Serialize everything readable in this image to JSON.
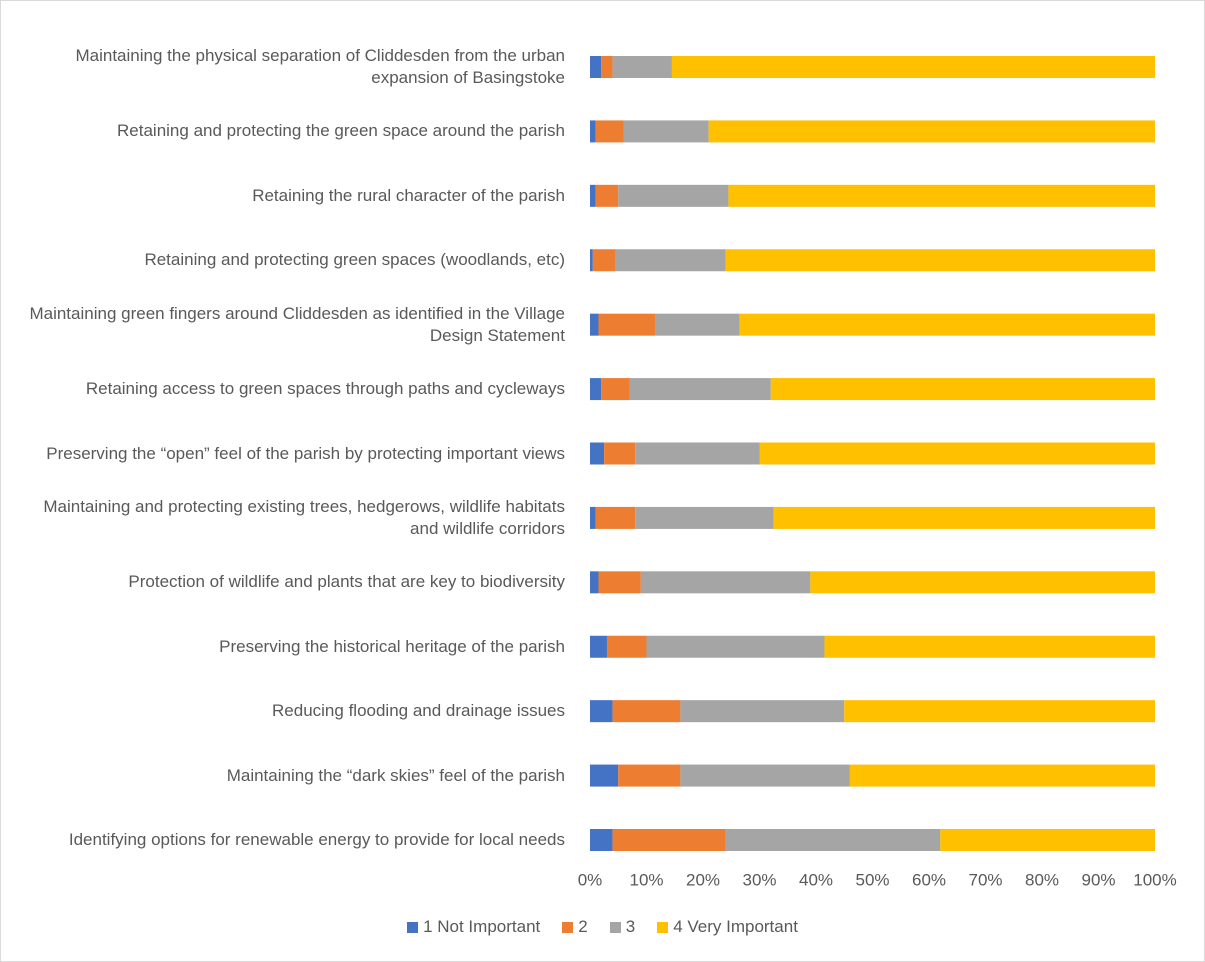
{
  "chart_data": {
    "type": "stacked-bar-horizontal",
    "categories": [
      "Maintaining the physical separation of Cliddesden from the urban expansion of Basingstoke",
      "Retaining and protecting the green space around the parish",
      "Retaining the rural character of the parish",
      "Retaining and protecting green spaces (woodlands, etc)",
      "Maintaining green fingers around Cliddesden as identified in the Village Design Statement",
      "Retaining access to green spaces through paths and cycleways",
      "Preserving the “open” feel of the parish by protecting important views",
      "Maintaining and protecting existing trees, hedgerows, wildlife habitats and wildlife corridors",
      "Protection of wildlife and plants that are key to biodiversity",
      "Preserving the historical heritage of the parish",
      "Reducing flooding and drainage issues",
      "Maintaining the “dark skies” feel of the parish",
      "Identifying options for renewable energy to provide for local needs"
    ],
    "series": [
      {
        "name": "1 Not Important",
        "color": "#4472c4",
        "values": [
          2,
          1,
          1,
          0.5,
          1.5,
          2,
          2.5,
          1,
          1.5,
          3,
          4,
          5,
          4
        ]
      },
      {
        "name": "2",
        "color": "#ed7d31",
        "values": [
          2,
          5,
          4,
          4,
          10,
          5,
          5.5,
          7,
          7.5,
          7,
          12,
          11,
          20
        ]
      },
      {
        "name": "3",
        "color": "#a5a5a5",
        "values": [
          10.5,
          15,
          19.5,
          19.5,
          15,
          25,
          22,
          24.5,
          30,
          31.5,
          29,
          30,
          38
        ]
      },
      {
        "name": "4 Very Important",
        "color": "#ffc000",
        "values": [
          85.5,
          79,
          75.5,
          76,
          73.5,
          68,
          70,
          67.5,
          61,
          58.5,
          55,
          54,
          38
        ]
      }
    ],
    "xlim": [
      0,
      100
    ],
    "xticks": [
      {
        "value": 0,
        "label": "0%"
      },
      {
        "value": 10,
        "label": "10%"
      },
      {
        "value": 20,
        "label": "20%"
      },
      {
        "value": 30,
        "label": "30%"
      },
      {
        "value": 40,
        "label": "40%"
      },
      {
        "value": 50,
        "label": "50%"
      },
      {
        "value": 60,
        "label": "60%"
      },
      {
        "value": 70,
        "label": "70%"
      },
      {
        "value": 80,
        "label": "80%"
      },
      {
        "value": 90,
        "label": "90%"
      },
      {
        "value": 100,
        "label": "100%"
      }
    ],
    "grid": false
  }
}
